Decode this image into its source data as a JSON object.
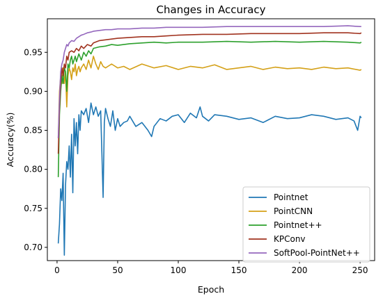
{
  "chart_data": {
    "type": "line",
    "title": "Changes in Accuracy",
    "xlabel": "Epoch",
    "ylabel": "Accuracy(%)",
    "xlim": [
      -8,
      262
    ],
    "ylim": [
      0.683,
      0.993
    ],
    "xticks": [
      0,
      50,
      100,
      150,
      200,
      250
    ],
    "xtick_labels": [
      "0",
      "50",
      "100",
      "150",
      "200",
      "250"
    ],
    "yticks": [
      0.7,
      0.75,
      0.8,
      0.85,
      0.9,
      0.95
    ],
    "ytick_labels": [
      "0.70",
      "0.75",
      "0.80",
      "0.85",
      "0.90",
      "0.95"
    ],
    "legend_position": "lower-right",
    "grid": false,
    "series": [
      {
        "name": "Pointnet",
        "color": "#1f77b4",
        "x": [
          1,
          2,
          3,
          4,
          5,
          6,
          7,
          8,
          9,
          10,
          11,
          12,
          13,
          14,
          15,
          16,
          17,
          18,
          19,
          20,
          22,
          24,
          26,
          28,
          30,
          32,
          34,
          36,
          37,
          38,
          39,
          40,
          42,
          44,
          46,
          48,
          50,
          52,
          55,
          58,
          60,
          65,
          70,
          75,
          78,
          80,
          85,
          90,
          95,
          100,
          105,
          110,
          115,
          118,
          120,
          125,
          130,
          140,
          150,
          160,
          170,
          180,
          190,
          200,
          210,
          220,
          230,
          240,
          245,
          248,
          250,
          251
        ],
        "y": [
          0.705,
          0.73,
          0.775,
          0.76,
          0.795,
          0.69,
          0.78,
          0.81,
          0.8,
          0.83,
          0.79,
          0.845,
          0.77,
          0.865,
          0.83,
          0.86,
          0.82,
          0.87,
          0.85,
          0.875,
          0.87,
          0.878,
          0.86,
          0.885,
          0.87,
          0.88,
          0.868,
          0.875,
          0.82,
          0.764,
          0.86,
          0.878,
          0.865,
          0.855,
          0.875,
          0.85,
          0.865,
          0.855,
          0.86,
          0.862,
          0.868,
          0.855,
          0.86,
          0.85,
          0.842,
          0.855,
          0.865,
          0.862,
          0.868,
          0.87,
          0.86,
          0.872,
          0.866,
          0.88,
          0.868,
          0.862,
          0.87,
          0.868,
          0.864,
          0.866,
          0.86,
          0.868,
          0.865,
          0.866,
          0.87,
          0.868,
          0.864,
          0.866,
          0.862,
          0.85,
          0.868,
          0.866
        ]
      },
      {
        "name": "PointCNN",
        "color": "#d4a017",
        "x": [
          1,
          2,
          3,
          4,
          5,
          6,
          7,
          8,
          9,
          10,
          11,
          12,
          13,
          14,
          15,
          16,
          17,
          18,
          19,
          20,
          22,
          24,
          26,
          28,
          30,
          32,
          34,
          36,
          38,
          40,
          45,
          50,
          55,
          60,
          70,
          80,
          90,
          100,
          110,
          120,
          130,
          140,
          150,
          160,
          170,
          180,
          190,
          200,
          210,
          220,
          230,
          240,
          250,
          251
        ],
        "y": [
          0.84,
          0.9,
          0.92,
          0.91,
          0.93,
          0.91,
          0.925,
          0.88,
          0.92,
          0.93,
          0.925,
          0.915,
          0.93,
          0.925,
          0.935,
          0.92,
          0.928,
          0.932,
          0.925,
          0.93,
          0.935,
          0.928,
          0.94,
          0.93,
          0.945,
          0.935,
          0.928,
          0.938,
          0.932,
          0.93,
          0.935,
          0.93,
          0.932,
          0.928,
          0.935,
          0.93,
          0.933,
          0.928,
          0.932,
          0.93,
          0.934,
          0.928,
          0.93,
          0.932,
          0.928,
          0.931,
          0.929,
          0.93,
          0.928,
          0.931,
          0.929,
          0.93,
          0.927,
          0.928
        ]
      },
      {
        "name": "Pointnet++",
        "color": "#2ca02c",
        "x": [
          1,
          2,
          3,
          4,
          5,
          6,
          7,
          8,
          9,
          10,
          11,
          12,
          13,
          14,
          15,
          16,
          18,
          20,
          22,
          24,
          26,
          28,
          30,
          35,
          40,
          45,
          50,
          60,
          70,
          80,
          90,
          100,
          120,
          140,
          160,
          180,
          200,
          220,
          240,
          250,
          251
        ],
        "y": [
          0.79,
          0.87,
          0.9,
          0.92,
          0.91,
          0.93,
          0.925,
          0.9,
          0.935,
          0.93,
          0.94,
          0.945,
          0.935,
          0.94,
          0.945,
          0.938,
          0.948,
          0.94,
          0.95,
          0.945,
          0.952,
          0.948,
          0.955,
          0.957,
          0.958,
          0.96,
          0.959,
          0.961,
          0.962,
          0.963,
          0.962,
          0.963,
          0.963,
          0.964,
          0.963,
          0.964,
          0.963,
          0.964,
          0.963,
          0.962,
          0.963
        ]
      },
      {
        "name": "KPConv",
        "color": "#a0321e",
        "x": [
          1,
          2,
          3,
          4,
          5,
          6,
          7,
          8,
          9,
          10,
          12,
          14,
          16,
          18,
          20,
          22,
          25,
          28,
          30,
          35,
          40,
          45,
          50,
          60,
          70,
          80,
          90,
          100,
          120,
          140,
          160,
          180,
          200,
          220,
          240,
          250,
          251
        ],
        "y": [
          0.82,
          0.88,
          0.91,
          0.93,
          0.92,
          0.935,
          0.93,
          0.945,
          0.94,
          0.95,
          0.952,
          0.95,
          0.955,
          0.952,
          0.958,
          0.955,
          0.96,
          0.958,
          0.962,
          0.965,
          0.966,
          0.967,
          0.968,
          0.969,
          0.97,
          0.97,
          0.971,
          0.972,
          0.973,
          0.973,
          0.974,
          0.974,
          0.974,
          0.975,
          0.975,
          0.974,
          0.975
        ]
      },
      {
        "name": "SoftPool-PointNet++",
        "color": "#9467bd",
        "x": [
          1,
          2,
          3,
          4,
          5,
          6,
          7,
          8,
          9,
          10,
          12,
          14,
          16,
          18,
          20,
          22,
          25,
          28,
          30,
          35,
          40,
          45,
          50,
          60,
          70,
          80,
          90,
          100,
          120,
          140,
          160,
          180,
          200,
          220,
          240,
          250,
          251
        ],
        "y": [
          0.84,
          0.89,
          0.925,
          0.935,
          0.94,
          0.95,
          0.955,
          0.96,
          0.958,
          0.962,
          0.965,
          0.964,
          0.968,
          0.97,
          0.972,
          0.973,
          0.975,
          0.976,
          0.977,
          0.978,
          0.979,
          0.979,
          0.98,
          0.98,
          0.981,
          0.981,
          0.982,
          0.982,
          0.982,
          0.983,
          0.983,
          0.983,
          0.983,
          0.983,
          0.984,
          0.983,
          0.983
        ]
      }
    ]
  }
}
